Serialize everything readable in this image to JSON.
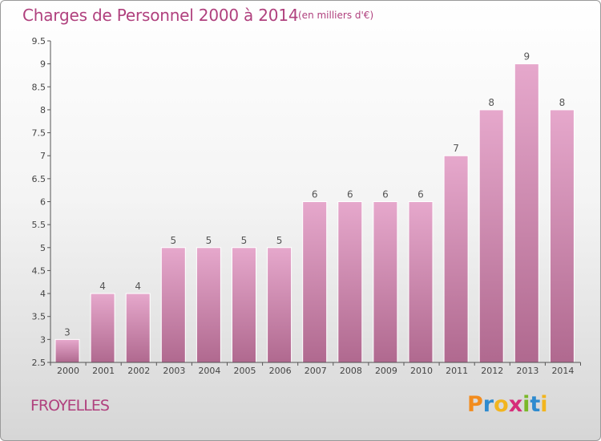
{
  "title": "Charges de Personnel 2000 à 2014",
  "subtitle": "(en milliers d'€)",
  "place": "FROYELLES",
  "logo": {
    "letters": [
      "P",
      "r",
      "o",
      "x",
      "i",
      "t",
      "i"
    ],
    "colors": [
      "#f28c1e",
      "#2e8bcf",
      "#f2b51e",
      "#d62d7a",
      "#7ab829",
      "#2e8bcf",
      "#f2b51e"
    ]
  },
  "colors": {
    "bar_top": "#e6a8cc",
    "bar_bottom": "#b0698f",
    "accent": "#b0417e"
  },
  "chart_data": {
    "type": "bar",
    "categories": [
      "2000",
      "2001",
      "2002",
      "2003",
      "2004",
      "2005",
      "2006",
      "2007",
      "2008",
      "2009",
      "2010",
      "2011",
      "2012",
      "2013",
      "2014"
    ],
    "values": [
      3,
      4,
      4,
      5,
      5,
      5,
      5,
      6,
      6,
      6,
      6,
      7,
      8,
      9,
      8
    ],
    "data_labels": [
      "3",
      "4",
      "4",
      "5",
      "5",
      "5",
      "5",
      "6",
      "6",
      "6",
      "6",
      "7",
      "8",
      "9",
      "8"
    ],
    "yticks": [
      "2.5",
      "3",
      "3.5",
      "4",
      "4.5",
      "5",
      "5.5",
      "6",
      "6.5",
      "7",
      "7.5",
      "8",
      "8.5",
      "9",
      "9.5"
    ],
    "ylim": [
      2.5,
      9.5
    ],
    "grid": false,
    "legend": "none"
  }
}
